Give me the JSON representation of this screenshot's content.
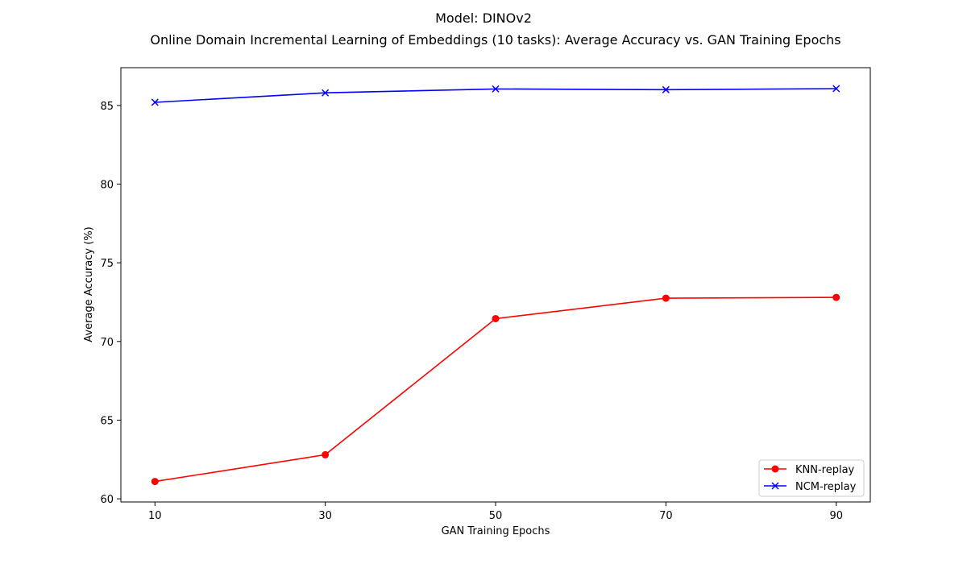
{
  "chart_data": {
    "type": "line",
    "suptitle": "Model: DINOv2",
    "title": "Online Domain Incremental Learning of Embeddings (10 tasks): Average Accuracy vs. GAN Training Epochs",
    "xlabel": "GAN Training Epochs",
    "ylabel": "Average Accuracy (%)",
    "x": [
      10,
      30,
      50,
      70,
      90
    ],
    "x_ticks": [
      "10",
      "30",
      "50",
      "70",
      "90"
    ],
    "y_ticks": [
      60,
      65,
      70,
      75,
      80,
      85
    ],
    "xlim": [
      6,
      94
    ],
    "ylim": [
      59.8,
      87.4
    ],
    "grid": false,
    "legend_position": "lower-right",
    "series": [
      {
        "name": "KNN-replay",
        "color": "#ff0000",
        "marker": "circle",
        "values": [
          61.1,
          62.8,
          71.45,
          72.75,
          72.8
        ]
      },
      {
        "name": "NCM-replay",
        "color": "#0000ff",
        "marker": "x",
        "values": [
          85.2,
          85.8,
          86.05,
          86.0,
          86.07
        ]
      }
    ]
  }
}
